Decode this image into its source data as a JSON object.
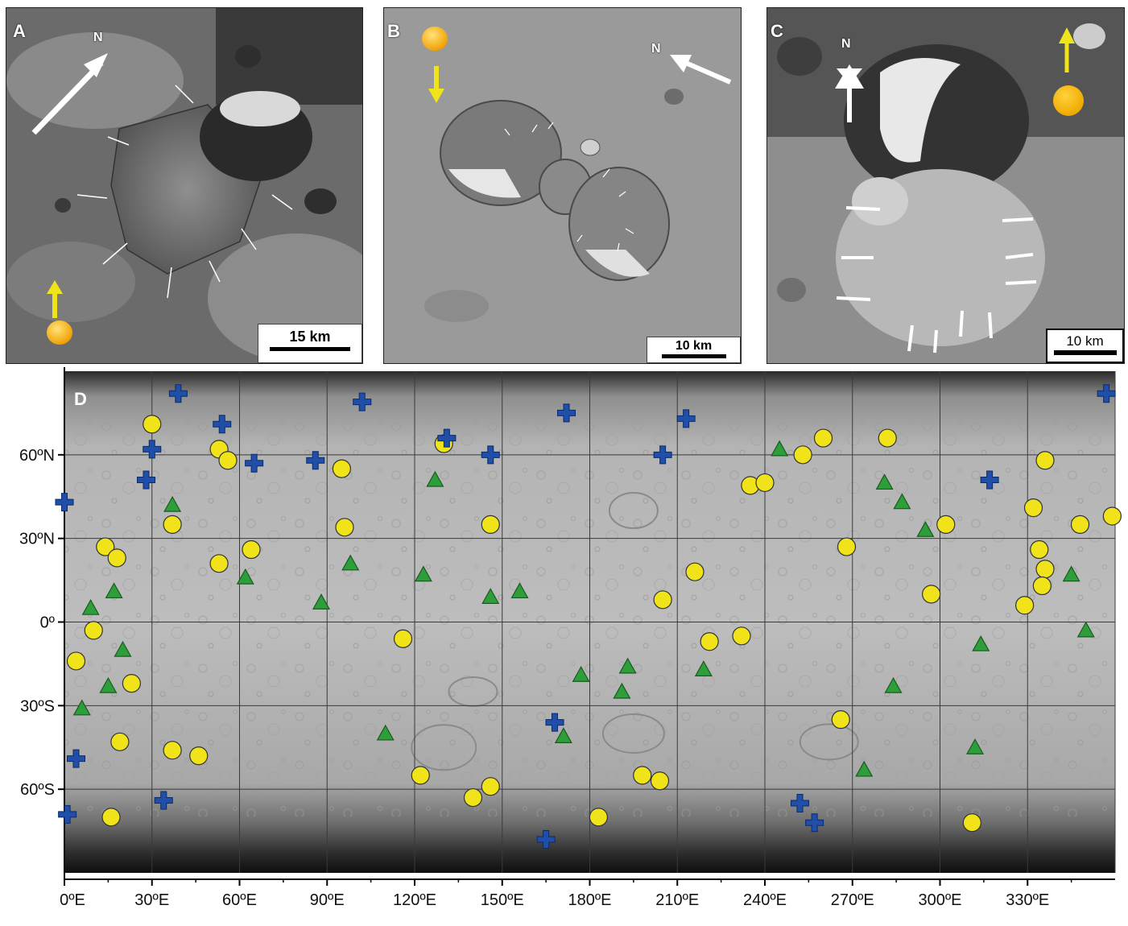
{
  "panels": {
    "a": {
      "letter": "A",
      "north": "N",
      "scale_label": "15 km"
    },
    "b": {
      "letter": "B",
      "north": "N",
      "scale_label": "10 km"
    },
    "c": {
      "letter": "C",
      "north": "N",
      "scale_label": "10 km"
    }
  },
  "map": {
    "letter": "D",
    "lat_labels": [
      "60ºN",
      "30ºN",
      "0º",
      "30ºS",
      "60ºS"
    ],
    "lat_values": [
      60,
      30,
      0,
      -30,
      -60
    ],
    "lon_labels": [
      "0ºE",
      "30ºE",
      "60ºE",
      "90ºE",
      "120ºE",
      "150ºE",
      "180ºE",
      "210ºE",
      "240ºE",
      "270ºE",
      "300ºE",
      "330ºE"
    ],
    "lon_values": [
      0,
      30,
      60,
      90,
      120,
      150,
      180,
      210,
      240,
      270,
      300,
      330
    ],
    "lon_range": [
      0,
      360
    ],
    "lat_range": [
      -90,
      90
    ],
    "colors": {
      "circle": "#f0e31a",
      "triangle": "#2e9e3a",
      "cross": "#1f4fa8",
      "sun_marker": "#f5b800",
      "sun_arrow": "#f0e31a"
    },
    "features": {
      "circles": [
        [
          30,
          71
        ],
        [
          53,
          62
        ],
        [
          56,
          58
        ],
        [
          95,
          55
        ],
        [
          37,
          35
        ],
        [
          96,
          34
        ],
        [
          14,
          27
        ],
        [
          18,
          23
        ],
        [
          53,
          21
        ],
        [
          64,
          26
        ],
        [
          146,
          35
        ],
        [
          130,
          64
        ],
        [
          235,
          49
        ],
        [
          240,
          50
        ],
        [
          253,
          60
        ],
        [
          260,
          66
        ],
        [
          282,
          66
        ],
        [
          336,
          58
        ],
        [
          332,
          41
        ],
        [
          348,
          35
        ],
        [
          359,
          38
        ],
        [
          302,
          35
        ],
        [
          268,
          27
        ],
        [
          334,
          26
        ],
        [
          336,
          19
        ],
        [
          335,
          13
        ],
        [
          329,
          6
        ],
        [
          297,
          10
        ],
        [
          216,
          18
        ],
        [
          205,
          8
        ],
        [
          10,
          -3
        ],
        [
          4,
          -14
        ],
        [
          23,
          -22
        ],
        [
          116,
          -6
        ],
        [
          221,
          -7
        ],
        [
          232,
          -5
        ],
        [
          19,
          -43
        ],
        [
          37,
          -46
        ],
        [
          46,
          -48
        ],
        [
          266,
          -35
        ],
        [
          122,
          -55
        ],
        [
          146,
          -59
        ],
        [
          140,
          -63
        ],
        [
          198,
          -55
        ],
        [
          204,
          -57
        ],
        [
          183,
          -70
        ],
        [
          16,
          -70
        ],
        [
          311,
          -72
        ]
      ],
      "triangles": [
        [
          37,
          42
        ],
        [
          17,
          11
        ],
        [
          9,
          5
        ],
        [
          20,
          -10
        ],
        [
          15,
          -23
        ],
        [
          6,
          -31
        ],
        [
          62,
          16
        ],
        [
          98,
          21
        ],
        [
          88,
          7
        ],
        [
          123,
          17
        ],
        [
          127,
          51
        ],
        [
          146,
          9
        ],
        [
          156,
          11
        ],
        [
          177,
          -19
        ],
        [
          193,
          -16
        ],
        [
          191,
          -25
        ],
        [
          219,
          -17
        ],
        [
          110,
          -40
        ],
        [
          171,
          -41
        ],
        [
          245,
          62
        ],
        [
          281,
          50
        ],
        [
          287,
          43
        ],
        [
          295,
          33
        ],
        [
          314,
          -8
        ],
        [
          345,
          17
        ],
        [
          350,
          -3
        ],
        [
          284,
          -23
        ],
        [
          312,
          -45
        ],
        [
          274,
          -53
        ]
      ],
      "crosses": [
        [
          39,
          82
        ],
        [
          28,
          51
        ],
        [
          30,
          62
        ],
        [
          54,
          71
        ],
        [
          65,
          57
        ],
        [
          86,
          58
        ],
        [
          102,
          79
        ],
        [
          131,
          66
        ],
        [
          146,
          60
        ],
        [
          172,
          75
        ],
        [
          205,
          60
        ],
        [
          213,
          73
        ],
        [
          0,
          43
        ],
        [
          317,
          51
        ],
        [
          357,
          82
        ],
        [
          168,
          -36
        ],
        [
          4,
          -49
        ],
        [
          1,
          -69
        ],
        [
          34,
          -64
        ],
        [
          165,
          -78
        ],
        [
          252,
          -65
        ],
        [
          257,
          -72
        ]
      ]
    }
  }
}
